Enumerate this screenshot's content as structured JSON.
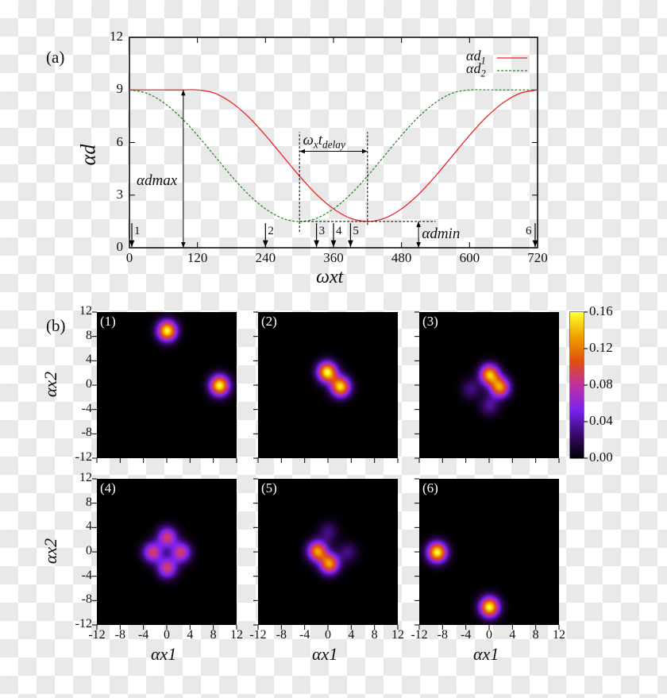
{
  "panel_a": {
    "label": "(a)"
  },
  "panel_b": {
    "label": "(b)"
  },
  "chart_data": [
    {
      "type": "line",
      "xlabel": "ωxt",
      "ylabel": "αd",
      "xlim": [
        0,
        720
      ],
      "ylim": [
        0,
        12
      ],
      "xticks": [
        0,
        120,
        240,
        360,
        480,
        600,
        720
      ],
      "yticks": [
        0,
        3,
        6,
        9,
        12
      ],
      "legend_position": "top-right",
      "x": [
        0,
        30,
        60,
        90,
        120,
        150,
        180,
        210,
        240,
        270,
        300,
        330,
        360,
        390,
        420,
        450,
        480,
        510,
        540,
        570,
        600,
        630,
        660,
        690,
        720
      ],
      "series": [
        {
          "name": "αd1",
          "color": "#e8262b",
          "style": "solid",
          "values": [
            9,
            9,
            9,
            9,
            9,
            8.82,
            8.28,
            7.46,
            6.41,
            5.25,
            4.09,
            3.04,
            2.22,
            1.68,
            1.5,
            1.68,
            2.22,
            3.04,
            4.09,
            5.25,
            6.41,
            7.46,
            8.28,
            8.82,
            9
          ]
        },
        {
          "name": "αd2",
          "color": "#2e8b2e",
          "style": "dashed",
          "values": [
            9,
            8.82,
            8.28,
            7.46,
            6.41,
            5.25,
            4.09,
            3.04,
            2.22,
            1.68,
            1.5,
            1.68,
            2.22,
            3.04,
            4.09,
            5.25,
            6.41,
            7.46,
            8.28,
            8.82,
            9,
            9,
            9,
            9,
            9
          ]
        }
      ],
      "markers": [
        {
          "label": "1",
          "t": 0
        },
        {
          "label": "2",
          "t": 240
        },
        {
          "label": "3",
          "t": 330
        },
        {
          "label": "4",
          "t": 360
        },
        {
          "label": "5",
          "t": 390
        },
        {
          "label": "6",
          "t": 720
        }
      ],
      "annotations": {
        "d_max": {
          "text": "αdmax",
          "t": 95,
          "from": 0,
          "to": 9
        },
        "t_delay": {
          "text": "ωxtdelay",
          "from": 300,
          "to": 420,
          "y": 5.5
        },
        "d_min": {
          "text": "αdmin",
          "t": 510,
          "from": 0,
          "to": 1.5
        }
      }
    },
    {
      "type": "heatmap",
      "xlabel": "αx1",
      "ylabel": "αx2",
      "xlim": [
        -12,
        12
      ],
      "ylim": [
        -12,
        12
      ],
      "xticks": [
        -12,
        -8,
        -4,
        0,
        4,
        8,
        12
      ],
      "yticks": [
        -12,
        -8,
        -4,
        0,
        4,
        8,
        12
      ],
      "colorbar": {
        "min": 0,
        "max": 0.16,
        "ticks": [
          "0.00",
          "0.04",
          "0.08",
          "0.12",
          "0.16"
        ],
        "colors": [
          "#000000",
          "#3a0a6e",
          "#7a22f0",
          "#c030a0",
          "#e05010",
          "#f0a000",
          "#ffff30"
        ]
      },
      "panels": [
        {
          "label": "(1)",
          "peaks": [
            [
              0,
              9,
              0.16
            ],
            [
              9,
              0,
              0.16
            ]
          ]
        },
        {
          "label": "(2)",
          "peaks": [
            [
              -0.2,
              2.2,
              0.16
            ],
            [
              2.1,
              -0.2,
              0.15
            ]
          ]
        },
        {
          "label": "(3)",
          "peaks": [
            [
              0,
              1.8,
              0.14
            ],
            [
              1.8,
              -0.3,
              0.13
            ],
            [
              -3.2,
              -0.6,
              0.03
            ],
            [
              0,
              -3.3,
              0.035
            ]
          ]
        },
        {
          "label": "(4)",
          "peaks": [
            [
              0,
              2.5,
              0.09
            ],
            [
              2.4,
              0,
              0.09
            ],
            [
              -2.5,
              0,
              0.09
            ],
            [
              0,
              -2.6,
              0.09
            ]
          ]
        },
        {
          "label": "(5)",
          "peaks": [
            [
              -1.9,
              0.2,
              0.13
            ],
            [
              0.2,
              -1.9,
              0.13
            ],
            [
              0,
              3.3,
              0.03
            ],
            [
              3.3,
              0,
              0.03
            ]
          ]
        },
        {
          "label": "(6)",
          "peaks": [
            [
              -9,
              0,
              0.16
            ],
            [
              0,
              -9,
              0.16
            ]
          ]
        }
      ]
    }
  ]
}
